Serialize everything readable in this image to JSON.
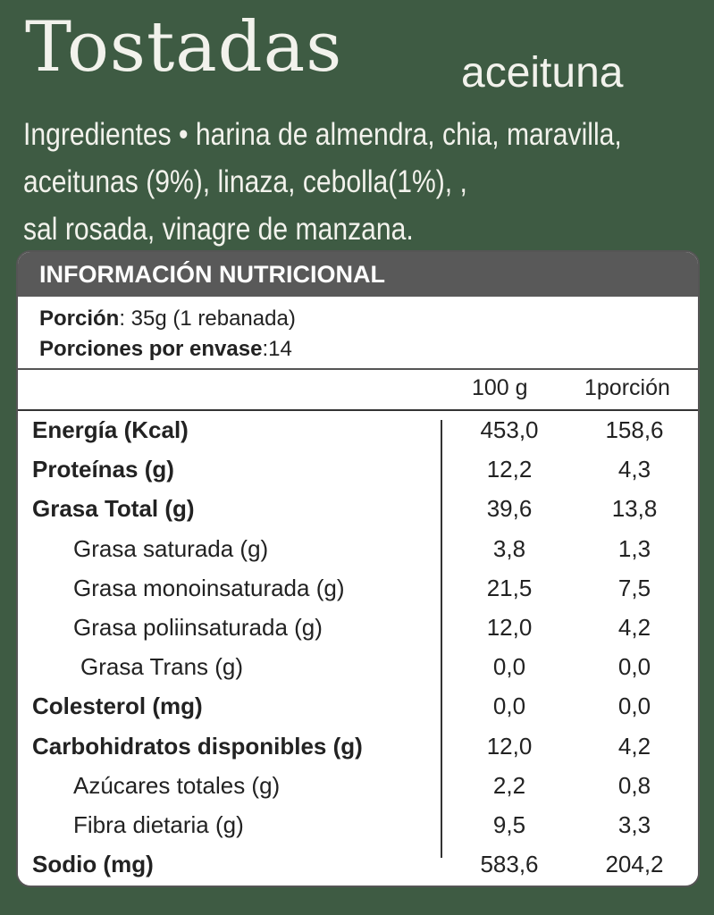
{
  "title": "Tostadas",
  "subtitle": "aceituna",
  "ingredients": {
    "line1": "Ingredientes • harina de almendra, chia, maravilla,",
    "line2": "aceitunas (9%), linaza, cebolla(1%), ,",
    "line3": "sal rosada, vinagre de manzana."
  },
  "panel": {
    "header": "INFORMACIÓN NUTRICIONAL",
    "portion_label": "Porción",
    "portion_value": ": 35g (1 rebanada)",
    "servings_label": "Porciones por envase",
    "servings_value": ":14",
    "col1": "100 g",
    "col2": "1porción"
  },
  "rows": [
    {
      "label": "Energía (Kcal)",
      "v100": "453,0",
      "vportion": "158,6"
    },
    {
      "label": "Proteínas (g)",
      "v100": "12,2",
      "vportion": "4,3"
    },
    {
      "label": "Grasa Total (g)",
      "v100": "39,6",
      "vportion": "13,8"
    },
    {
      "label": "Grasa saturada (g)",
      "v100": "3,8",
      "vportion": "1,3"
    },
    {
      "label": "Grasa monoinsaturada (g)",
      "v100": "21,5",
      "vportion": "7,5"
    },
    {
      "label": "Grasa poliinsaturada (g)",
      "v100": "12,0",
      "vportion": "4,2"
    },
    {
      "label": "Grasa Trans (g)",
      "v100": "0,0",
      "vportion": "0,0"
    },
    {
      "label": "Colesterol (mg)",
      "v100": "0,0",
      "vportion": "0,0"
    },
    {
      "label": "Carbohidratos disponibles (g)",
      "v100": "12,0",
      "vportion": "4,2"
    },
    {
      "label": "Azúcares totales (g)",
      "v100": "2,2",
      "vportion": "0,8"
    },
    {
      "label": "Fibra dietaria (g)",
      "v100": "9,5",
      "vportion": "3,3"
    },
    {
      "label": "Sodio (mg)",
      "v100": "583,6",
      "vportion": "204,2"
    }
  ],
  "colors": {
    "background": "#3e5b43",
    "header": "#595959",
    "text_light": "#f2f2ec"
  }
}
